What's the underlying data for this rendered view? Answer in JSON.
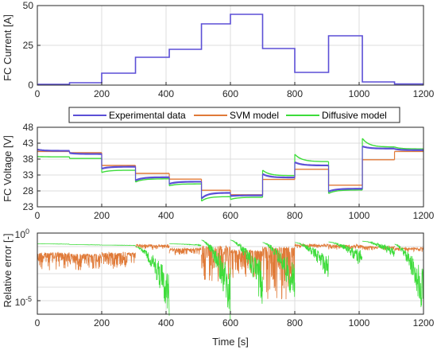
{
  "figure": {
    "xlabel": "Time [s]",
    "xticks": [
      0,
      200,
      400,
      600,
      800,
      1000,
      1200
    ],
    "xlim": [
      0,
      1200
    ]
  },
  "legend": {
    "placement": "between-top-and-middle",
    "entries": [
      {
        "name": "Experimental data",
        "color": "#5b4fd6"
      },
      {
        "name": "SVM model",
        "color": "#e07a38"
      },
      {
        "name": "Diffusive model",
        "color": "#3ddc3a"
      }
    ]
  },
  "chart_data": [
    {
      "type": "line",
      "ylabel": "FC Current [A]",
      "ylim": [
        0,
        50
      ],
      "yticks": [
        0,
        25,
        50
      ],
      "grid": true,
      "series": [
        {
          "name": "Experimental data",
          "color": "#5b4fd6",
          "x": [
            0,
            100,
            100,
            200,
            200,
            305,
            305,
            410,
            410,
            510,
            510,
            600,
            600,
            700,
            700,
            800,
            800,
            905,
            905,
            1010,
            1010,
            1110,
            1110,
            1200
          ],
          "y": [
            0.5,
            0.5,
            1.5,
            1.5,
            7.5,
            7.5,
            17.5,
            17.5,
            22.5,
            22.5,
            38.5,
            38.5,
            44.5,
            44.5,
            23.0,
            23.0,
            8.0,
            8.0,
            31.0,
            31.0,
            2.0,
            2.0,
            0.7,
            0.7
          ]
        }
      ]
    },
    {
      "type": "line",
      "ylabel": "FC Voltage [V]",
      "ylim": [
        23,
        48
      ],
      "yticks": [
        23,
        28,
        33,
        38,
        43,
        48
      ],
      "grid": true,
      "series": [
        {
          "name": "Experimental data",
          "color": "#5b4fd6",
          "segments": [
            {
              "x": [
                0,
                100
              ],
              "y": [
                41.0,
                40.6
              ]
            },
            {
              "x": [
                100,
                200
              ],
              "y": [
                39.9,
                39.6
              ]
            },
            {
              "x": [
                200,
                305
              ],
              "y": [
                35.0,
                35.6
              ]
            },
            {
              "x": [
                305,
                410
              ],
              "y": [
                31.3,
                32.3
              ]
            },
            {
              "x": [
                410,
                510
              ],
              "y": [
                30.2,
                30.9
              ]
            },
            {
              "x": [
                510,
                600
              ],
              "y": [
                25.6,
                27.4
              ]
            },
            {
              "x": [
                600,
                700
              ],
              "y": [
                26.4,
                26.6
              ]
            },
            {
              "x": [
                700,
                800
              ],
              "y": [
                33.3,
                32.2
              ]
            },
            {
              "x": [
                800,
                905
              ],
              "y": [
                37.0,
                36.0
              ]
            },
            {
              "x": [
                905,
                1010
              ],
              "y": [
                27.8,
                28.7
              ]
            },
            {
              "x": [
                1010,
                1110
              ],
              "y": [
                42.0,
                41.3
              ]
            },
            {
              "x": [
                1110,
                1200
              ],
              "y": [
                41.2,
                40.8
              ]
            }
          ]
        },
        {
          "name": "SVM model",
          "color": "#e07a38",
          "segments": [
            {
              "x": [
                0,
                100
              ],
              "y": [
                40.4,
                40.4
              ]
            },
            {
              "x": [
                100,
                200
              ],
              "y": [
                40.0,
                40.0
              ]
            },
            {
              "x": [
                200,
                305
              ],
              "y": [
                36.0,
                36.0
              ]
            },
            {
              "x": [
                305,
                410
              ],
              "y": [
                33.5,
                33.5
              ]
            },
            {
              "x": [
                410,
                510
              ],
              "y": [
                31.7,
                31.7
              ]
            },
            {
              "x": [
                510,
                600
              ],
              "y": [
                28.2,
                28.2
              ]
            },
            {
              "x": [
                600,
                700
              ],
              "y": [
                26.8,
                26.8
              ]
            },
            {
              "x": [
                700,
                800
              ],
              "y": [
                31.6,
                31.6
              ]
            },
            {
              "x": [
                800,
                905
              ],
              "y": [
                34.8,
                34.8
              ]
            },
            {
              "x": [
                905,
                1010
              ],
              "y": [
                29.8,
                29.8
              ]
            },
            {
              "x": [
                1010,
                1110
              ],
              "y": [
                37.8,
                37.8
              ]
            },
            {
              "x": [
                1110,
                1200
              ],
              "y": [
                40.4,
                40.4
              ]
            }
          ]
        },
        {
          "name": "Diffusive model",
          "color": "#3ddc3a",
          "segments": [
            {
              "x": [
                0,
                100
              ],
              "y": [
                38.8,
                38.7
              ]
            },
            {
              "x": [
                100,
                200
              ],
              "y": [
                38.2,
                38.2
              ]
            },
            {
              "x": [
                200,
                305
              ],
              "y": [
                33.8,
                34.5
              ]
            },
            {
              "x": [
                305,
                410
              ],
              "y": [
                30.8,
                31.8
              ]
            },
            {
              "x": [
                410,
                510
              ],
              "y": [
                29.6,
                30.2
              ]
            },
            {
              "x": [
                510,
                600
              ],
              "y": [
                24.8,
                26.2
              ]
            },
            {
              "x": [
                600,
                700
              ],
              "y": [
                25.3,
                26.0
              ]
            },
            {
              "x": [
                700,
                800
              ],
              "y": [
                34.5,
                32.8
              ]
            },
            {
              "x": [
                800,
                905
              ],
              "y": [
                39.5,
                37.2
              ]
            },
            {
              "x": [
                905,
                1010
              ],
              "y": [
                27.2,
                28.3
              ]
            },
            {
              "x": [
                1010,
                1110
              ],
              "y": [
                44.5,
                41.8
              ]
            },
            {
              "x": [
                1110,
                1200
              ],
              "y": [
                41.8,
                41.2
              ]
            }
          ]
        }
      ]
    },
    {
      "type": "line",
      "ylabel": "Relative error [-]",
      "yscale": "log",
      "ylim": [
        1e-06,
        1
      ],
      "yticks": [
        {
          "value": 1,
          "label": "10",
          "exponent": "0"
        },
        {
          "value": 1e-05,
          "label": "10",
          "exponent": "-5"
        }
      ],
      "grid": true,
      "series": [
        {
          "name": "SVM model",
          "color": "#e07a38",
          "note_style": "noisy",
          "segments": [
            {
              "x": [
                0,
                100
              ],
              "base": 0.04,
              "floor": 0.002
            },
            {
              "x": [
                100,
                200
              ],
              "base": 0.03,
              "floor": 0.002
            },
            {
              "x": [
                200,
                305
              ],
              "base": 0.04,
              "floor": 0.003
            },
            {
              "x": [
                305,
                410
              ],
              "base": 0.15,
              "floor": 0.08
            },
            {
              "x": [
                410,
                510
              ],
              "base": 0.08,
              "floor": 0.03
            },
            {
              "x": [
                510,
                600
              ],
              "base": 0.12,
              "floor": 0.0003
            },
            {
              "x": [
                600,
                700
              ],
              "base": 0.06,
              "floor": 0.0005
            },
            {
              "x": [
                700,
                800
              ],
              "base": 0.1,
              "floor": 1e-05
            },
            {
              "x": [
                800,
                905
              ],
              "base": 0.16,
              "floor": 0.1
            },
            {
              "x": [
                905,
                1010
              ],
              "base": 0.15,
              "floor": 0.08
            },
            {
              "x": [
                1010,
                1110
              ],
              "base": 0.12,
              "floor": 0.07
            },
            {
              "x": [
                1110,
                1200
              ],
              "base": 0.09,
              "floor": 0.05
            }
          ]
        },
        {
          "name": "Diffusive model",
          "color": "#3ddc3a",
          "note_style": "decaying",
          "segments": [
            {
              "x": [
                0,
                100
              ],
              "base": 0.16,
              "floor": 0.15
            },
            {
              "x": [
                100,
                200
              ],
              "base": 0.14,
              "floor": 0.13
            },
            {
              "x": [
                200,
                305
              ],
              "base": 0.13,
              "floor": 0.12
            },
            {
              "x": [
                305,
                410
              ],
              "base": 0.1,
              "floor": 5e-06
            },
            {
              "x": [
                410,
                510
              ],
              "base": 0.16,
              "floor": 0.12
            },
            {
              "x": [
                510,
                600
              ],
              "base": 0.3,
              "floor": 3e-06
            },
            {
              "x": [
                600,
                700
              ],
              "base": 0.3,
              "floor": 2e-05
            },
            {
              "x": [
                700,
                800
              ],
              "base": 0.2,
              "floor": 2e-05
            },
            {
              "x": [
                800,
                905
              ],
              "base": 0.2,
              "floor": 0.001
            },
            {
              "x": [
                905,
                1010
              ],
              "base": 0.22,
              "floor": 0.005
            },
            {
              "x": [
                1010,
                1110
              ],
              "base": 0.25,
              "floor": 0.02
            },
            {
              "x": [
                1110,
                1200
              ],
              "base": 0.15,
              "floor": 5e-06
            }
          ]
        }
      ]
    }
  ]
}
